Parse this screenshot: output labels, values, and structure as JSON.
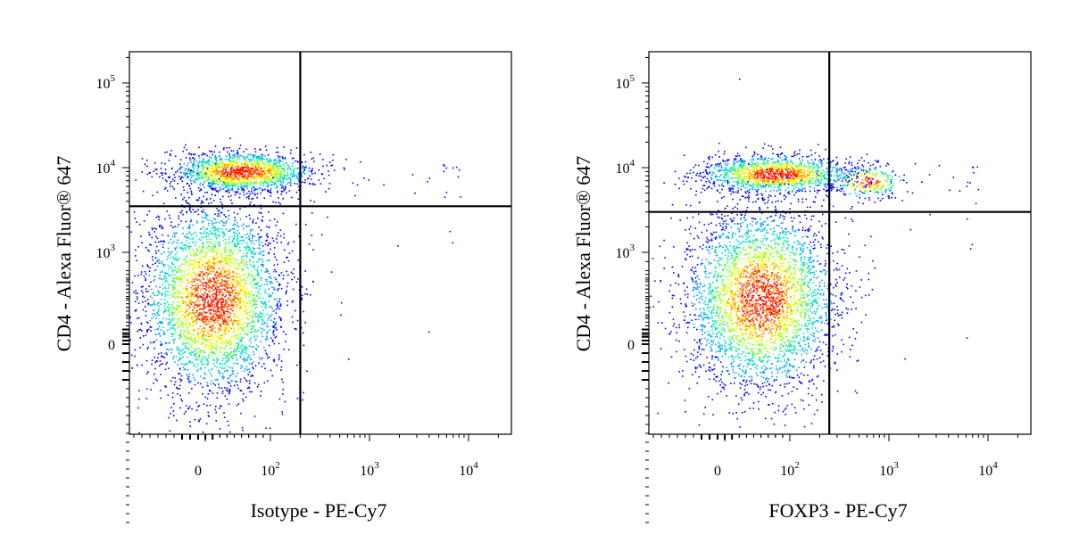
{
  "chart_data": [
    {
      "type": "scatter",
      "plot_style": "flow-cytometry pseudocolor density dot plot",
      "scale": "biexponential (logicle) on both axes",
      "xlabel": "Isotype - PE-Cy7",
      "ylabel": "CD4 - Alexa Fluor® 647",
      "x_ticks": [
        {
          "value": 0,
          "base": "0",
          "exp": ""
        },
        {
          "value": 100,
          "base": "10",
          "exp": "2"
        },
        {
          "value": 1000,
          "base": "10",
          "exp": "3"
        },
        {
          "value": 10000,
          "base": "10",
          "exp": "4"
        }
      ],
      "y_ticks": [
        {
          "value": 0,
          "base": "0",
          "exp": ""
        },
        {
          "value": 1000,
          "base": "10",
          "exp": "3"
        },
        {
          "value": 10000,
          "base": "10",
          "exp": "4"
        },
        {
          "value": 100000,
          "base": "10",
          "exp": "5"
        }
      ],
      "quadrant_gate": {
        "x": 200,
        "y": 3500
      },
      "populations": [
        {
          "label": "CD4+ cluster",
          "x_center": 60,
          "y_center": 9000,
          "x_range": [
            -60,
            200
          ],
          "y_range": [
            5000,
            16000
          ],
          "relative_size": 0.3
        },
        {
          "label": "CD4- cluster",
          "x_center": 20,
          "y_center": 500,
          "x_range": [
            -60,
            200
          ],
          "y_range": [
            -300,
            3000
          ],
          "relative_size": 0.7
        }
      ],
      "colors": {
        "low": "#0000ff",
        "mid": "#00e0c0",
        "midhigh": "#ffff00",
        "high": "#ff0000"
      }
    },
    {
      "type": "scatter",
      "plot_style": "flow-cytometry pseudocolor density dot plot",
      "scale": "biexponential (logicle) on both axes",
      "xlabel": "FOXP3 - PE-Cy7",
      "ylabel": "CD4 - Alexa Fluor® 647",
      "x_ticks": [
        {
          "value": 0,
          "base": "0",
          "exp": ""
        },
        {
          "value": 100,
          "base": "10",
          "exp": "2"
        },
        {
          "value": 1000,
          "base": "10",
          "exp": "3"
        },
        {
          "value": 10000,
          "base": "10",
          "exp": "4"
        }
      ],
      "y_ticks": [
        {
          "value": 0,
          "base": "0",
          "exp": ""
        },
        {
          "value": 1000,
          "base": "10",
          "exp": "3"
        },
        {
          "value": 10000,
          "base": "10",
          "exp": "4"
        },
        {
          "value": 100000,
          "base": "10",
          "exp": "5"
        }
      ],
      "quadrant_gate": {
        "x": 250,
        "y": 3000
      },
      "populations": [
        {
          "label": "CD4+ FOXP3- cluster",
          "x_center": 80,
          "y_center": 8500,
          "x_range": [
            -60,
            250
          ],
          "y_range": [
            5000,
            15000
          ],
          "relative_size": 0.27
        },
        {
          "label": "CD4+ FOXP3+ cluster",
          "x_center": 600,
          "y_center": 7000,
          "x_range": [
            250,
            1500
          ],
          "y_range": [
            4500,
            12000
          ],
          "relative_size": 0.05
        },
        {
          "label": "CD4- cluster",
          "x_center": 60,
          "y_center": 500,
          "x_range": [
            -60,
            250
          ],
          "y_range": [
            -300,
            2500
          ],
          "relative_size": 0.68
        }
      ],
      "colors": {
        "low": "#0000ff",
        "mid": "#00e0c0",
        "midhigh": "#ffff00",
        "high": "#ff0000"
      }
    }
  ]
}
